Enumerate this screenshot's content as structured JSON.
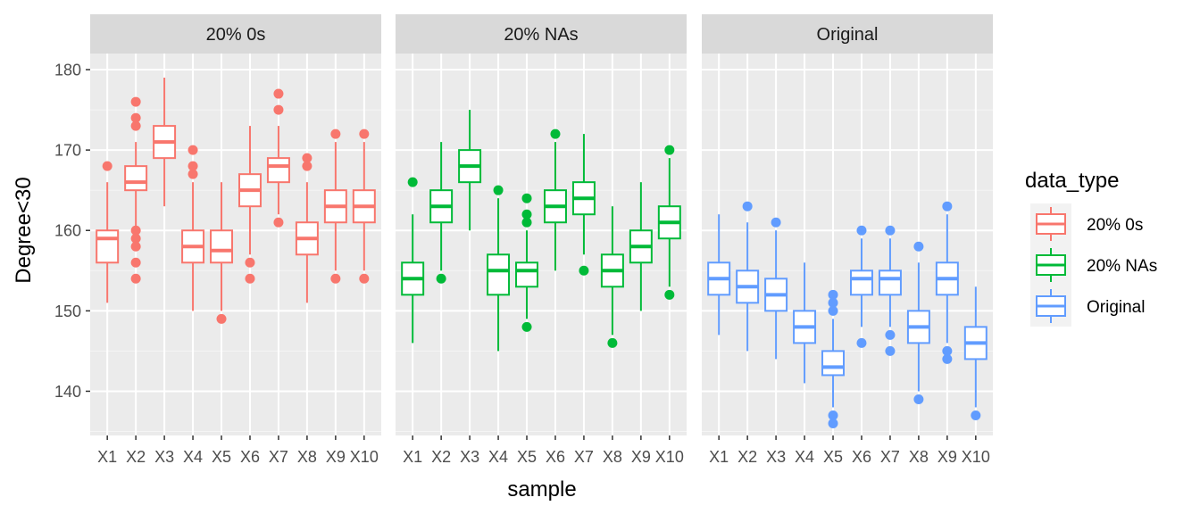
{
  "chart_data": {
    "type": "boxplot",
    "xlabel": "sample",
    "ylabel": "Degree<30",
    "ylim": [
      134.5,
      182
    ],
    "yticks": [
      140,
      150,
      160,
      170,
      180
    ],
    "categories": [
      "X1",
      "X2",
      "X3",
      "X4",
      "X5",
      "X6",
      "X7",
      "X8",
      "X9",
      "X10"
    ],
    "grid": true,
    "legend": {
      "title": "data_type",
      "placement": "right",
      "entries": [
        {
          "label": "20% 0s",
          "color": "#F8766D"
        },
        {
          "label": "20% NAs",
          "color": "#00BA38"
        },
        {
          "label": "Original",
          "color": "#619CFF"
        }
      ]
    },
    "panels": [
      {
        "strip": "20% 0s",
        "color": "#F8766D",
        "boxes": [
          {
            "x": "X1",
            "whisker_low": 151,
            "q1": 156,
            "median": 159,
            "q3": 160,
            "whisker_high": 166,
            "outliers": [
              168
            ]
          },
          {
            "x": "X2",
            "whisker_low": 160.5,
            "q1": 165,
            "median": 166,
            "q3": 168,
            "whisker_high": 171,
            "outliers": [
              176,
              174,
              173,
              160,
              159,
              158,
              156,
              154
            ]
          },
          {
            "x": "X3",
            "whisker_low": 163,
            "q1": 169,
            "median": 171,
            "q3": 173,
            "whisker_high": 179,
            "outliers": []
          },
          {
            "x": "X4",
            "whisker_low": 150,
            "q1": 156,
            "median": 158,
            "q3": 160,
            "whisker_high": 166,
            "outliers": [
              170,
              168,
              167
            ]
          },
          {
            "x": "X5",
            "whisker_low": 150,
            "q1": 156,
            "median": 157.5,
            "q3": 160,
            "whisker_high": 166,
            "outliers": [
              149
            ]
          },
          {
            "x": "X6",
            "whisker_low": 157,
            "q1": 163,
            "median": 165,
            "q3": 167,
            "whisker_high": 173,
            "outliers": [
              156,
              154
            ]
          },
          {
            "x": "X7",
            "whisker_low": 162,
            "q1": 166,
            "median": 168,
            "q3": 169,
            "whisker_high": 173,
            "outliers": [
              177,
              175,
              161
            ]
          },
          {
            "x": "X8",
            "whisker_low": 151,
            "q1": 157,
            "median": 159,
            "q3": 161,
            "whisker_high": 166,
            "outliers": [
              169,
              168
            ]
          },
          {
            "x": "X9",
            "whisker_low": 155,
            "q1": 161,
            "median": 163,
            "q3": 165,
            "whisker_high": 171,
            "outliers": [
              172,
              154
            ]
          },
          {
            "x": "X10",
            "whisker_low": 155,
            "q1": 161,
            "median": 163,
            "q3": 165,
            "whisker_high": 171,
            "outliers": [
              172,
              154
            ]
          }
        ]
      },
      {
        "strip": "20% NAs",
        "color": "#00BA38",
        "boxes": [
          {
            "x": "X1",
            "whisker_low": 146,
            "q1": 152,
            "median": 154,
            "q3": 156,
            "whisker_high": 162,
            "outliers": [
              166
            ]
          },
          {
            "x": "X2",
            "whisker_low": 155,
            "q1": 161,
            "median": 163,
            "q3": 165,
            "whisker_high": 171,
            "outliers": [
              154
            ]
          },
          {
            "x": "X3",
            "whisker_low": 160,
            "q1": 166,
            "median": 168,
            "q3": 170,
            "whisker_high": 175,
            "outliers": []
          },
          {
            "x": "X4",
            "whisker_low": 145,
            "q1": 152,
            "median": 155,
            "q3": 157,
            "whisker_high": 164,
            "outliers": [
              165
            ]
          },
          {
            "x": "X5",
            "whisker_low": 149,
            "q1": 153,
            "median": 155,
            "q3": 156,
            "whisker_high": 160,
            "outliers": [
              164,
              162,
              161,
              148
            ]
          },
          {
            "x": "X6",
            "whisker_low": 155,
            "q1": 161,
            "median": 163,
            "q3": 165,
            "whisker_high": 171,
            "outliers": [
              172
            ]
          },
          {
            "x": "X7",
            "whisker_low": 157,
            "q1": 162,
            "median": 164,
            "q3": 166,
            "whisker_high": 172,
            "outliers": [
              155
            ]
          },
          {
            "x": "X8",
            "whisker_low": 147,
            "q1": 153,
            "median": 155,
            "q3": 157,
            "whisker_high": 163,
            "outliers": [
              146
            ]
          },
          {
            "x": "X9",
            "whisker_low": 150,
            "q1": 156,
            "median": 158,
            "q3": 160,
            "whisker_high": 166,
            "outliers": []
          },
          {
            "x": "X10",
            "whisker_low": 153,
            "q1": 159,
            "median": 161,
            "q3": 163,
            "whisker_high": 169,
            "outliers": [
              170,
              152
            ]
          }
        ]
      },
      {
        "strip": "Original",
        "color": "#619CFF",
        "boxes": [
          {
            "x": "X1",
            "whisker_low": 147,
            "q1": 152,
            "median": 154,
            "q3": 156,
            "whisker_high": 162,
            "outliers": []
          },
          {
            "x": "X2",
            "whisker_low": 145,
            "q1": 151,
            "median": 153,
            "q3": 155,
            "whisker_high": 161,
            "outliers": [
              163
            ]
          },
          {
            "x": "X3",
            "whisker_low": 144,
            "q1": 150,
            "median": 152,
            "q3": 154,
            "whisker_high": 160,
            "outliers": [
              161
            ]
          },
          {
            "x": "X4",
            "whisker_low": 141,
            "q1": 146,
            "median": 148,
            "q3": 150,
            "whisker_high": 156,
            "outliers": []
          },
          {
            "x": "X5",
            "whisker_low": 138,
            "q1": 142,
            "median": 143,
            "q3": 145,
            "whisker_high": 149,
            "outliers": [
              152,
              151,
              150,
              137,
              136
            ]
          },
          {
            "x": "X6",
            "whisker_low": 148,
            "q1": 152,
            "median": 154,
            "q3": 155,
            "whisker_high": 159,
            "outliers": [
              160,
              146
            ]
          },
          {
            "x": "X7",
            "whisker_low": 148,
            "q1": 152,
            "median": 154,
            "q3": 155,
            "whisker_high": 159,
            "outliers": [
              160,
              147,
              145
            ]
          },
          {
            "x": "X8",
            "whisker_low": 140,
            "q1": 146,
            "median": 148,
            "q3": 150,
            "whisker_high": 156,
            "outliers": [
              158,
              139
            ]
          },
          {
            "x": "X9",
            "whisker_low": 146,
            "q1": 152,
            "median": 154,
            "q3": 156,
            "whisker_high": 162,
            "outliers": [
              163,
              145,
              144
            ]
          },
          {
            "x": "X10",
            "whisker_low": 138,
            "q1": 144,
            "median": 146,
            "q3": 148,
            "whisker_high": 153,
            "outliers": [
              137
            ]
          }
        ]
      }
    ]
  }
}
